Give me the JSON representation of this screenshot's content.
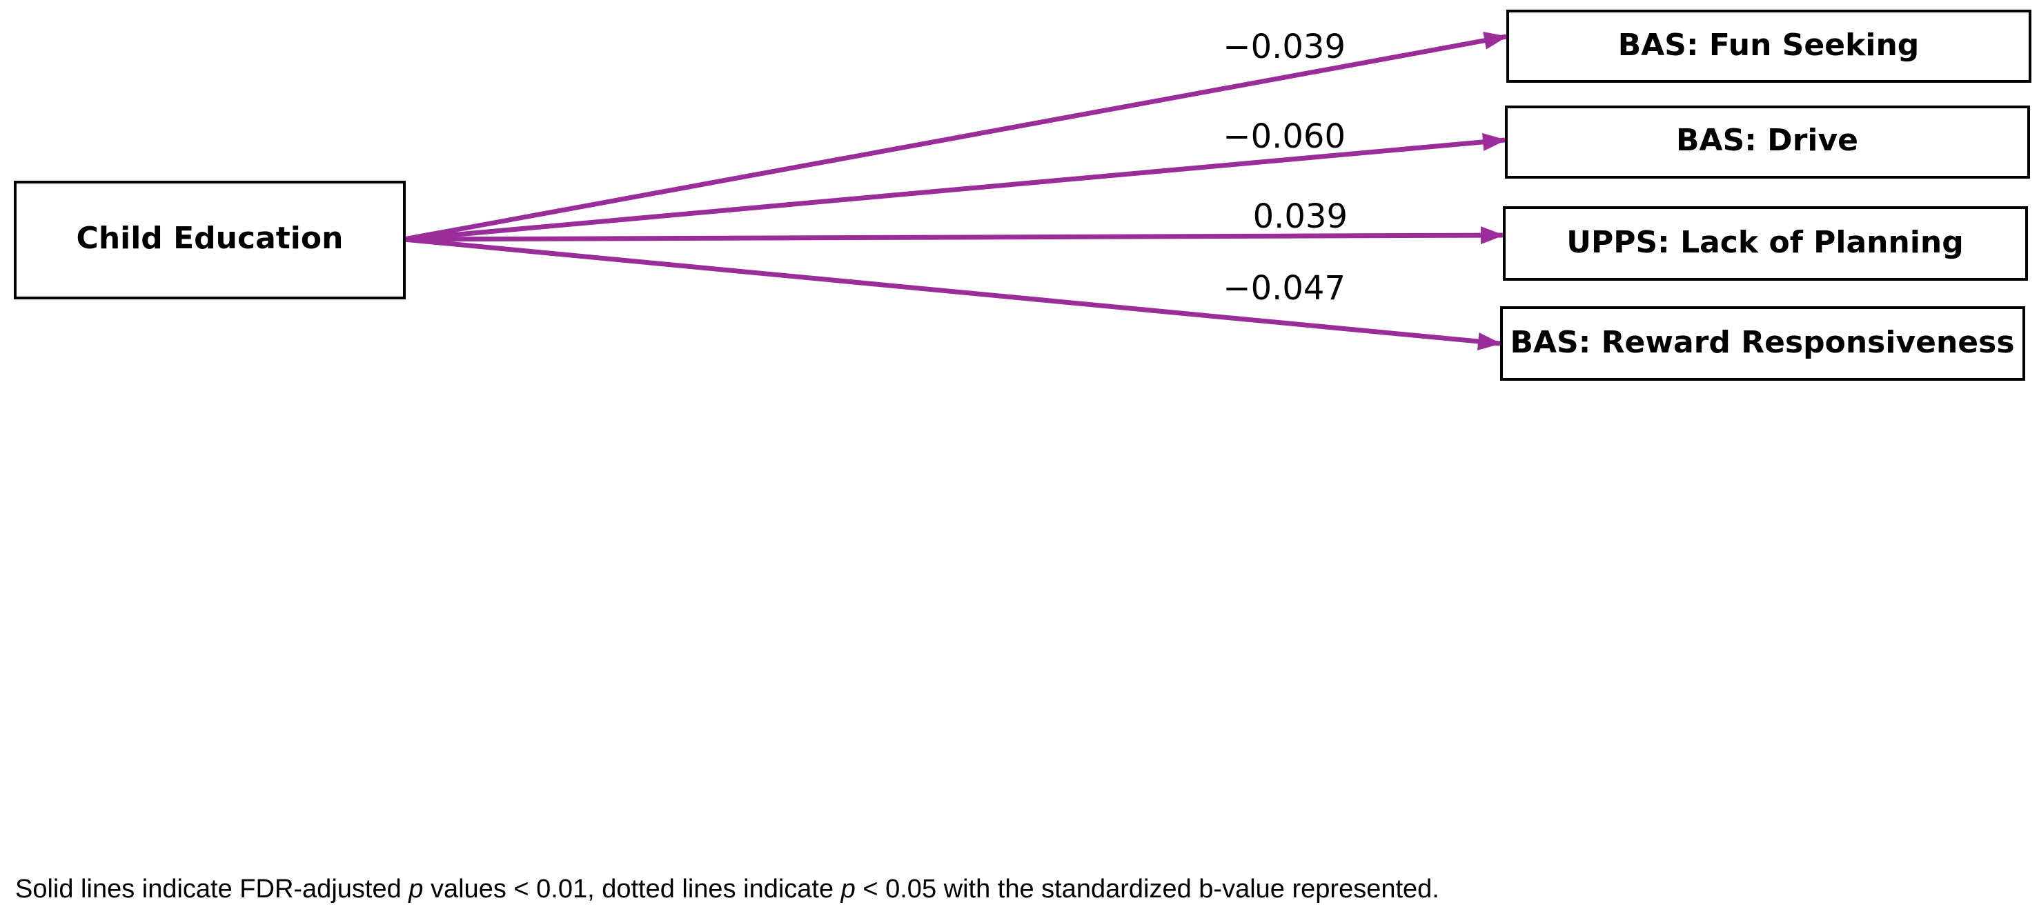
{
  "diagram": {
    "type": "path-diagram",
    "arrow_color": "#9B2D9B",
    "source": {
      "label": "Child Education"
    },
    "paths": [
      {
        "target": "BAS: Fun Seeking",
        "coefficient": "−0.039",
        "line_style": "solid"
      },
      {
        "target": "BAS: Drive",
        "coefficient": "−0.060",
        "line_style": "solid"
      },
      {
        "target": "UPPS: Lack of Planning",
        "coefficient": "0.039",
        "line_style": "solid"
      },
      {
        "target": "BAS: Reward Responsiveness",
        "coefficient": "−0.047",
        "line_style": "solid"
      }
    ]
  },
  "footnote": {
    "part1": "Solid lines indicate FDR-adjusted ",
    "p1": "p",
    "part2": " values < 0.01, dotted lines indicate ",
    "p2": "p",
    "part3": " < 0.05 with the standardized b-value represented."
  }
}
